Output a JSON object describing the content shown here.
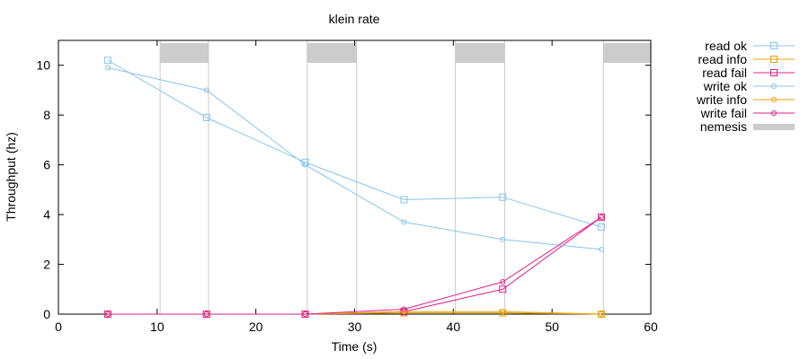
{
  "chart_data": {
    "type": "line",
    "title": "klein rate",
    "xlabel": "Time (s)",
    "ylabel": "Throughput (hz)",
    "xlim": [
      0,
      60
    ],
    "ylim": [
      0,
      11
    ],
    "xticks": [
      0,
      10,
      20,
      30,
      40,
      50,
      60
    ],
    "yticks": [
      0,
      2,
      4,
      6,
      8,
      10
    ],
    "legend_position": "outside-right",
    "nemesis": {
      "name": "nemesis",
      "color": "#cccccc",
      "intervals": [
        [
          10.3,
          15.2
        ],
        [
          25.2,
          30.2
        ],
        [
          40.2,
          45.2
        ],
        [
          55.2,
          60
        ]
      ]
    },
    "series": [
      {
        "name": "read ok",
        "color": "#87c4ee",
        "marker": "square",
        "x": [
          5,
          15,
          25,
          35,
          45,
          55
        ],
        "y": [
          10.2,
          7.9,
          6.1,
          4.6,
          4.7,
          3.5
        ]
      },
      {
        "name": "read info",
        "color": "#e8a000",
        "marker": "square",
        "x": [
          5,
          15,
          25,
          35,
          45,
          55
        ],
        "y": [
          0,
          0,
          0,
          0.05,
          0.05,
          0
        ]
      },
      {
        "name": "read fail",
        "color": "#e0208a",
        "marker": "square",
        "x": [
          5,
          15,
          25,
          35,
          45,
          55
        ],
        "y": [
          0,
          0,
          0,
          0.1,
          1.0,
          3.9
        ]
      },
      {
        "name": "write ok",
        "color": "#87c4ee",
        "marker": "circle",
        "x": [
          5,
          15,
          25,
          35,
          45,
          55
        ],
        "y": [
          9.9,
          9.0,
          6.0,
          3.7,
          3.0,
          2.6
        ]
      },
      {
        "name": "write info",
        "color": "#e8a000",
        "marker": "circle",
        "x": [
          5,
          15,
          25,
          35,
          45,
          55
        ],
        "y": [
          0,
          0,
          0,
          0.1,
          0.1,
          0
        ]
      },
      {
        "name": "write fail",
        "color": "#e0208a",
        "marker": "circle",
        "x": [
          5,
          15,
          25,
          35,
          45,
          55
        ],
        "y": [
          0,
          0,
          0,
          0.2,
          1.3,
          3.9
        ]
      }
    ]
  }
}
